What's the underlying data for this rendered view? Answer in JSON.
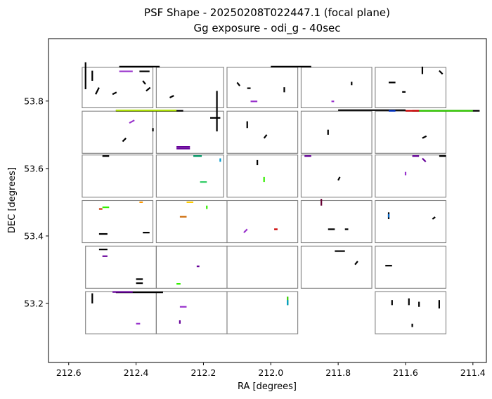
{
  "chart_data": {
    "type": "scatter",
    "title": [
      "PSF Shape - 20250208T022447.1 (focal plane)",
      "Gg exposure - odi_g - 40sec"
    ],
    "xlabel": "RA [degrees]",
    "ylabel": "DEC [degrees]",
    "xlim": [
      212.66,
      211.36
    ],
    "ylim": [
      53.025,
      53.985
    ],
    "x_ticks": [
      "212.6",
      "212.4",
      "212.2",
      "212.0",
      "211.8",
      "211.6",
      "211.4"
    ],
    "x_tick_values": [
      212.6,
      212.4,
      212.2,
      212.0,
      211.8,
      211.6,
      211.4
    ],
    "y_ticks": [
      "53.2",
      "53.4",
      "53.6",
      "53.8"
    ],
    "y_tick_values": [
      53.2,
      53.4,
      53.6,
      53.8
    ],
    "grid": false,
    "legend": "none",
    "ota_frame_color": "#808080",
    "ota_cells": [
      {
        "ra": [
          212.56,
          212.35
        ],
        "dec": [
          53.9,
          53.78
        ]
      },
      {
        "ra": [
          212.34,
          212.14
        ],
        "dec": [
          53.9,
          53.78
        ]
      },
      {
        "ra": [
          212.13,
          211.92
        ],
        "dec": [
          53.9,
          53.78
        ]
      },
      {
        "ra": [
          211.91,
          211.7
        ],
        "dec": [
          53.9,
          53.78
        ]
      },
      {
        "ra": [
          211.69,
          211.48
        ],
        "dec": [
          53.9,
          53.78
        ]
      },
      {
        "ra": [
          212.56,
          212.35
        ],
        "dec": [
          53.77,
          53.645
        ]
      },
      {
        "ra": [
          212.34,
          212.14
        ],
        "dec": [
          53.77,
          53.645
        ]
      },
      {
        "ra": [
          212.13,
          211.92
        ],
        "dec": [
          53.77,
          53.645
        ]
      },
      {
        "ra": [
          211.91,
          211.7
        ],
        "dec": [
          53.77,
          53.645
        ]
      },
      {
        "ra": [
          211.69,
          211.48
        ],
        "dec": [
          53.77,
          53.645
        ]
      },
      {
        "ra": [
          212.56,
          212.35
        ],
        "dec": [
          53.64,
          53.515
        ]
      },
      {
        "ra": [
          212.34,
          212.14
        ],
        "dec": [
          53.64,
          53.515
        ]
      },
      {
        "ra": [
          212.13,
          211.92
        ],
        "dec": [
          53.64,
          53.515
        ]
      },
      {
        "ra": [
          211.91,
          211.7
        ],
        "dec": [
          53.64,
          53.515
        ]
      },
      {
        "ra": [
          211.69,
          211.48
        ],
        "dec": [
          53.64,
          53.515
        ]
      },
      {
        "ra": [
          212.56,
          212.35
        ],
        "dec": [
          53.505,
          53.38
        ]
      },
      {
        "ra": [
          212.34,
          212.13
        ],
        "dec": [
          53.505,
          53.38
        ]
      },
      {
        "ra": [
          212.13,
          211.92
        ],
        "dec": [
          53.505,
          53.38
        ]
      },
      {
        "ra": [
          211.91,
          211.7
        ],
        "dec": [
          53.505,
          53.38
        ]
      },
      {
        "ra": [
          211.69,
          211.48
        ],
        "dec": [
          53.505,
          53.38
        ]
      },
      {
        "ra": [
          212.55,
          212.34
        ],
        "dec": [
          53.37,
          53.245
        ]
      },
      {
        "ra": [
          212.34,
          212.13
        ],
        "dec": [
          53.37,
          53.245
        ]
      },
      {
        "ra": [
          212.13,
          211.92
        ],
        "dec": [
          53.37,
          53.245
        ]
      },
      {
        "ra": [
          211.91,
          211.7
        ],
        "dec": [
          53.37,
          53.245
        ]
      },
      {
        "ra": [
          211.69,
          211.48
        ],
        "dec": [
          53.37,
          53.245
        ]
      },
      {
        "ra": [
          212.55,
          212.34
        ],
        "dec": [
          53.235,
          53.11
        ]
      },
      {
        "ra": [
          212.34,
          212.13
        ],
        "dec": [
          53.235,
          53.11
        ]
      },
      {
        "ra": [
          212.13,
          211.92
        ],
        "dec": [
          53.235,
          53.11
        ]
      },
      {
        "ra": [
          211.69,
          211.48
        ],
        "dec": [
          53.235,
          53.11
        ]
      }
    ],
    "psf_sticks": [
      {
        "ra": 212.45,
        "dec": 53.902,
        "dx": 0.12,
        "dy": 0.0,
        "color": "#000000"
      },
      {
        "ra": 212.0,
        "dec": 53.902,
        "dx": 0.12,
        "dy": 0.0,
        "color": "#000000"
      },
      {
        "ra": 212.45,
        "dec": 53.888,
        "dx": 0.04,
        "dy": 0.0,
        "color": "#9933cc"
      },
      {
        "ra": 212.39,
        "dec": 53.888,
        "dx": 0.03,
        "dy": 0.0,
        "color": "#000000"
      },
      {
        "ra": 212.55,
        "dec": 53.835,
        "dx": 0.0,
        "dy": 0.08,
        "color": "#000000"
      },
      {
        "ra": 212.53,
        "dec": 53.86,
        "dx": 0.0,
        "dy": 0.03,
        "color": "#000000"
      },
      {
        "ra": 212.52,
        "dec": 53.82,
        "dx": 0.01,
        "dy": 0.02,
        "color": "#000000"
      },
      {
        "ra": 212.47,
        "dec": 53.82,
        "dx": 0.012,
        "dy": 0.006,
        "color": "#000000"
      },
      {
        "ra": 212.37,
        "dec": 53.83,
        "dx": 0.012,
        "dy": 0.01,
        "color": "#000000"
      },
      {
        "ra": 212.38,
        "dec": 53.86,
        "dx": 0.008,
        "dy": -0.01,
        "color": "#000000"
      },
      {
        "ra": 212.3,
        "dec": 53.81,
        "dx": 0.012,
        "dy": 0.006,
        "color": "#000000"
      },
      {
        "ra": 212.1,
        "dec": 53.855,
        "dx": 0.008,
        "dy": -0.01,
        "color": "#000000"
      },
      {
        "ra": 212.07,
        "dec": 53.838,
        "dx": 0.01,
        "dy": 0.0,
        "color": "#000000"
      },
      {
        "ra": 212.06,
        "dec": 53.799,
        "dx": 0.02,
        "dy": 0.0,
        "color": "#9933cc"
      },
      {
        "ra": 211.96,
        "dec": 53.826,
        "dx": 0.0,
        "dy": 0.015,
        "color": "#000000"
      },
      {
        "ra": 211.82,
        "dec": 53.799,
        "dx": 0.008,
        "dy": 0.0,
        "color": "#9933cc"
      },
      {
        "ra": 211.76,
        "dec": 53.847,
        "dx": 0.0,
        "dy": 0.01,
        "color": "#000000"
      },
      {
        "ra": 211.65,
        "dec": 53.855,
        "dx": 0.02,
        "dy": 0.0,
        "color": "#000000"
      },
      {
        "ra": 211.61,
        "dec": 53.827,
        "dx": 0.01,
        "dy": 0.0,
        "color": "#000000"
      },
      {
        "ra": 211.55,
        "dec": 53.88,
        "dx": 0.0,
        "dy": 0.022,
        "color": "#000000"
      },
      {
        "ra": 211.5,
        "dec": 53.89,
        "dx": 0.01,
        "dy": -0.01,
        "color": "#000000"
      },
      {
        "ra": 212.46,
        "dec": 53.771,
        "dx": 0.2,
        "dy": 0.0,
        "color": "#000000"
      },
      {
        "ra": 212.46,
        "dec": 53.772,
        "dx": 0.18,
        "dy": 0.0,
        "color": "#aadd00"
      },
      {
        "ra": 211.58,
        "dec": 53.771,
        "dx": 0.2,
        "dy": 0.0,
        "color": "#000000"
      },
      {
        "ra": 211.8,
        "dec": 53.773,
        "dx": 0.2,
        "dy": 0.0,
        "color": "#000000"
      },
      {
        "ra": 211.56,
        "dec": 53.771,
        "dx": 0.16,
        "dy": 0.0,
        "color": "#33cc00"
      },
      {
        "ra": 211.6,
        "dec": 53.771,
        "dx": 0.04,
        "dy": 0.0,
        "color": "#cc0000"
      },
      {
        "ra": 211.65,
        "dec": 53.771,
        "dx": 0.02,
        "dy": 0.0,
        "color": "#0033cc"
      },
      {
        "ra": 212.16,
        "dec": 53.71,
        "dx": 0.0,
        "dy": 0.12,
        "color": "#000000"
      },
      {
        "ra": 212.18,
        "dec": 53.75,
        "dx": 0.03,
        "dy": 0.0,
        "color": "#000000"
      },
      {
        "ra": 212.28,
        "dec": 53.659,
        "dx": 0.04,
        "dy": 0.0,
        "color": "#660099"
      },
      {
        "ra": 212.28,
        "dec": 53.664,
        "dx": 0.04,
        "dy": 0.0,
        "color": "#660099"
      },
      {
        "ra": 212.42,
        "dec": 53.735,
        "dx": 0.015,
        "dy": 0.008,
        "color": "#9933cc"
      },
      {
        "ra": 212.35,
        "dec": 53.71,
        "dx": 0.0,
        "dy": 0.01,
        "color": "#000000"
      },
      {
        "ra": 212.44,
        "dec": 53.68,
        "dx": 0.01,
        "dy": 0.01,
        "color": "#000000"
      },
      {
        "ra": 212.07,
        "dec": 53.72,
        "dx": 0.0,
        "dy": 0.02,
        "color": "#000000"
      },
      {
        "ra": 212.02,
        "dec": 53.69,
        "dx": 0.008,
        "dy": 0.01,
        "color": "#000000"
      },
      {
        "ra": 211.83,
        "dec": 53.7,
        "dx": 0.0,
        "dy": 0.015,
        "color": "#000000"
      },
      {
        "ra": 211.55,
        "dec": 53.69,
        "dx": 0.012,
        "dy": 0.006,
        "color": "#000000"
      },
      {
        "ra": 212.5,
        "dec": 53.637,
        "dx": 0.02,
        "dy": 0.0,
        "color": "#000000"
      },
      {
        "ra": 212.23,
        "dec": 53.637,
        "dx": 0.025,
        "dy": 0.0,
        "color": "#009966"
      },
      {
        "ra": 211.9,
        "dec": 53.637,
        "dx": 0.02,
        "dy": 0.0,
        "color": "#660099"
      },
      {
        "ra": 211.58,
        "dec": 53.637,
        "dx": 0.02,
        "dy": 0.0,
        "color": "#660099"
      },
      {
        "ra": 211.5,
        "dec": 53.637,
        "dx": 0.02,
        "dy": 0.0,
        "color": "#000000"
      },
      {
        "ra": 211.55,
        "dec": 53.63,
        "dx": 0.01,
        "dy": -0.01,
        "color": "#660099"
      },
      {
        "ra": 212.21,
        "dec": 53.56,
        "dx": 0.02,
        "dy": 0.0,
        "color": "#33cc66"
      },
      {
        "ra": 212.15,
        "dec": 53.62,
        "dx": 0.0,
        "dy": 0.01,
        "color": "#0099cc"
      },
      {
        "ra": 212.04,
        "dec": 53.61,
        "dx": 0.0,
        "dy": 0.015,
        "color": "#000000"
      },
      {
        "ra": 212.02,
        "dec": 53.56,
        "dx": 0.0,
        "dy": 0.015,
        "color": "#33ee00"
      },
      {
        "ra": 211.8,
        "dec": 53.565,
        "dx": 0.005,
        "dy": 0.01,
        "color": "#000000"
      },
      {
        "ra": 211.6,
        "dec": 53.58,
        "dx": 0.0,
        "dy": 0.01,
        "color": "#9933cc"
      },
      {
        "ra": 212.5,
        "dec": 53.485,
        "dx": 0.02,
        "dy": 0.0,
        "color": "#33ee00"
      },
      {
        "ra": 212.51,
        "dec": 53.48,
        "dx": 0.01,
        "dy": 0.0,
        "color": "#cc3300"
      },
      {
        "ra": 212.39,
        "dec": 53.5,
        "dx": 0.01,
        "dy": 0.0,
        "color": "#ff9900"
      },
      {
        "ra": 212.27,
        "dec": 53.457,
        "dx": 0.02,
        "dy": 0.0,
        "color": "#cc6600"
      },
      {
        "ra": 212.25,
        "dec": 53.5,
        "dx": 0.02,
        "dy": 0.0,
        "color": "#ffcc00"
      },
      {
        "ra": 212.19,
        "dec": 53.48,
        "dx": 0.0,
        "dy": 0.01,
        "color": "#33ee00"
      },
      {
        "ra": 212.51,
        "dec": 53.406,
        "dx": 0.025,
        "dy": 0.0,
        "color": "#000000"
      },
      {
        "ra": 212.38,
        "dec": 53.41,
        "dx": 0.02,
        "dy": 0.0,
        "color": "#000000"
      },
      {
        "ra": 212.08,
        "dec": 53.41,
        "dx": 0.01,
        "dy": 0.01,
        "color": "#9933cc"
      },
      {
        "ra": 211.99,
        "dec": 53.42,
        "dx": 0.01,
        "dy": 0.0,
        "color": "#cc0000"
      },
      {
        "ra": 211.85,
        "dec": 53.49,
        "dx": 0.0,
        "dy": 0.02,
        "color": "#660033"
      },
      {
        "ra": 211.83,
        "dec": 53.42,
        "dx": 0.02,
        "dy": 0.0,
        "color": "#000000"
      },
      {
        "ra": 211.78,
        "dec": 53.42,
        "dx": 0.01,
        "dy": 0.0,
        "color": "#000000"
      },
      {
        "ra": 211.65,
        "dec": 53.45,
        "dx": 0.0,
        "dy": 0.02,
        "color": "#000000"
      },
      {
        "ra": 211.65,
        "dec": 53.455,
        "dx": 0.0,
        "dy": 0.01,
        "color": "#0066cc"
      },
      {
        "ra": 211.52,
        "dec": 53.45,
        "dx": 0.008,
        "dy": 0.006,
        "color": "#000000"
      },
      {
        "ra": 212.51,
        "dec": 53.36,
        "dx": 0.025,
        "dy": 0.0,
        "color": "#000000"
      },
      {
        "ra": 212.4,
        "dec": 53.272,
        "dx": 0.02,
        "dy": 0.0,
        "color": "#000000"
      },
      {
        "ra": 212.4,
        "dec": 53.26,
        "dx": 0.02,
        "dy": 0.0,
        "color": "#000000"
      },
      {
        "ra": 212.5,
        "dec": 53.34,
        "dx": 0.015,
        "dy": 0.0,
        "color": "#660099"
      },
      {
        "ra": 212.28,
        "dec": 53.258,
        "dx": 0.012,
        "dy": 0.0,
        "color": "#33ee00"
      },
      {
        "ra": 212.22,
        "dec": 53.31,
        "dx": 0.008,
        "dy": 0.0,
        "color": "#660099"
      },
      {
        "ra": 211.81,
        "dec": 53.355,
        "dx": 0.03,
        "dy": 0.0,
        "color": "#000000"
      },
      {
        "ra": 211.66,
        "dec": 53.312,
        "dx": 0.02,
        "dy": 0.0,
        "color": "#000000"
      },
      {
        "ra": 211.75,
        "dec": 53.315,
        "dx": 0.008,
        "dy": 0.01,
        "color": "#000000"
      },
      {
        "ra": 212.46,
        "dec": 53.233,
        "dx": 0.14,
        "dy": 0.0,
        "color": "#000000"
      },
      {
        "ra": 212.47,
        "dec": 53.234,
        "dx": 0.06,
        "dy": 0.0,
        "color": "#660099"
      },
      {
        "ra": 212.53,
        "dec": 53.2,
        "dx": 0.0,
        "dy": 0.03,
        "color": "#000000"
      },
      {
        "ra": 212.27,
        "dec": 53.19,
        "dx": 0.02,
        "dy": 0.0,
        "color": "#9933cc"
      },
      {
        "ra": 212.4,
        "dec": 53.14,
        "dx": 0.012,
        "dy": 0.0,
        "color": "#9933cc"
      },
      {
        "ra": 212.27,
        "dec": 53.14,
        "dx": 0.0,
        "dy": 0.01,
        "color": "#660099"
      },
      {
        "ra": 211.95,
        "dec": 53.195,
        "dx": 0.0,
        "dy": 0.025,
        "color": "#33cc00"
      },
      {
        "ra": 211.95,
        "dec": 53.195,
        "dx": 0.0,
        "dy": 0.015,
        "color": "#0099cc"
      },
      {
        "ra": 211.59,
        "dec": 53.195,
        "dx": 0.0,
        "dy": 0.02,
        "color": "#000000"
      },
      {
        "ra": 211.56,
        "dec": 53.19,
        "dx": 0.0,
        "dy": 0.015,
        "color": "#000000"
      },
      {
        "ra": 211.5,
        "dec": 53.185,
        "dx": 0.0,
        "dy": 0.025,
        "color": "#000000"
      },
      {
        "ra": 211.64,
        "dec": 53.195,
        "dx": 0.0,
        "dy": 0.015,
        "color": "#000000"
      },
      {
        "ra": 211.58,
        "dec": 53.13,
        "dx": 0.0,
        "dy": 0.01,
        "color": "#000000"
      }
    ]
  }
}
